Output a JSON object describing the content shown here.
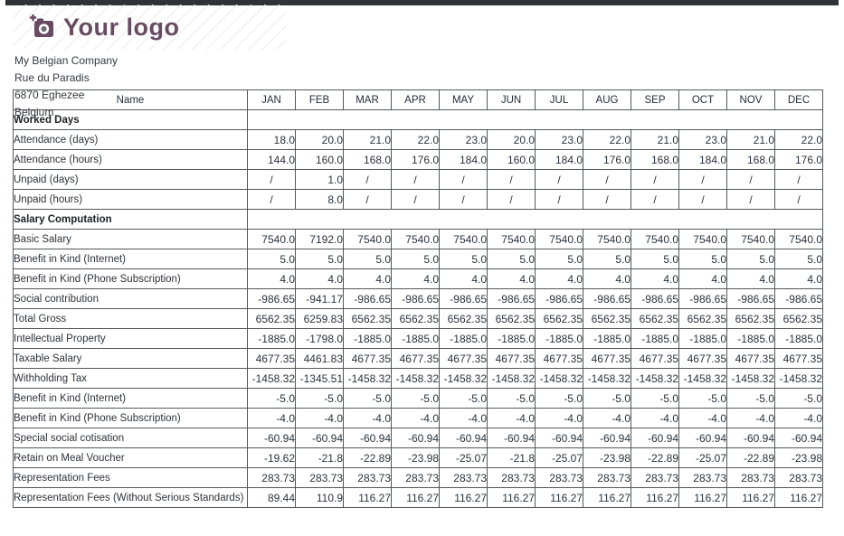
{
  "colors": {
    "brand_purple": "#684B63",
    "top_bar": "#2f3338",
    "table_border": "#53575c",
    "text": "#29323c"
  },
  "logo": {
    "text": "Your logo",
    "icon": "camera-plus-icon"
  },
  "company": {
    "name": "My Belgian Company",
    "street": "Rue du Paradis",
    "city": "6870 Eghezee",
    "country": "Belgium"
  },
  "table": {
    "name_header": "Name",
    "months": [
      "JAN",
      "FEB",
      "MAR",
      "APR",
      "MAY",
      "JUN",
      "JUL",
      "AUG",
      "SEP",
      "OCT",
      "NOV",
      "DEC"
    ],
    "sections": [
      {
        "title": "Worked Days",
        "rows": [
          {
            "label": "Attendance (days)",
            "values": [
              "18.0",
              "20.0",
              "21.0",
              "22.0",
              "23.0",
              "20.0",
              "23.0",
              "22.0",
              "21.0",
              "23.0",
              "21.0",
              "22.0"
            ]
          },
          {
            "label": "Attendance (hours)",
            "values": [
              "144.0",
              "160.0",
              "168.0",
              "176.0",
              "184.0",
              "160.0",
              "184.0",
              "176.0",
              "168.0",
              "184.0",
              "168.0",
              "176.0"
            ]
          },
          {
            "label": "Unpaid (days)",
            "values": [
              "/",
              "1.0",
              "/",
              "/",
              "/",
              "/",
              "/",
              "/",
              "/",
              "/",
              "/",
              "/"
            ]
          },
          {
            "label": "Unpaid (hours)",
            "values": [
              "/",
              "8.0",
              "/",
              "/",
              "/",
              "/",
              "/",
              "/",
              "/",
              "/",
              "/",
              "/"
            ]
          }
        ]
      },
      {
        "title": "Salary Computation",
        "rows": [
          {
            "label": "Basic Salary",
            "values": [
              "7540.0",
              "7192.0",
              "7540.0",
              "7540.0",
              "7540.0",
              "7540.0",
              "7540.0",
              "7540.0",
              "7540.0",
              "7540.0",
              "7540.0",
              "7540.0"
            ]
          },
          {
            "label": "Benefit in Kind (Internet)",
            "values": [
              "5.0",
              "5.0",
              "5.0",
              "5.0",
              "5.0",
              "5.0",
              "5.0",
              "5.0",
              "5.0",
              "5.0",
              "5.0",
              "5.0"
            ]
          },
          {
            "label": "Benefit in Kind (Phone Subscription)",
            "values": [
              "4.0",
              "4.0",
              "4.0",
              "4.0",
              "4.0",
              "4.0",
              "4.0",
              "4.0",
              "4.0",
              "4.0",
              "4.0",
              "4.0"
            ]
          },
          {
            "label": "Social contribution",
            "values": [
              "-986.65",
              "-941.17",
              "-986.65",
              "-986.65",
              "-986.65",
              "-986.65",
              "-986.65",
              "-986.65",
              "-986.65",
              "-986.65",
              "-986.65",
              "-986.65"
            ]
          },
          {
            "label": "Total Gross",
            "values": [
              "6562.35",
              "6259.83",
              "6562.35",
              "6562.35",
              "6562.35",
              "6562.35",
              "6562.35",
              "6562.35",
              "6562.35",
              "6562.35",
              "6562.35",
              "6562.35"
            ]
          },
          {
            "label": "Intellectual Property",
            "values": [
              "-1885.0",
              "-1798.0",
              "-1885.0",
              "-1885.0",
              "-1885.0",
              "-1885.0",
              "-1885.0",
              "-1885.0",
              "-1885.0",
              "-1885.0",
              "-1885.0",
              "-1885.0"
            ]
          },
          {
            "label": "Taxable Salary",
            "values": [
              "4677.35",
              "4461.83",
              "4677.35",
              "4677.35",
              "4677.35",
              "4677.35",
              "4677.35",
              "4677.35",
              "4677.35",
              "4677.35",
              "4677.35",
              "4677.35"
            ]
          },
          {
            "label": "Withholding Tax",
            "values": [
              "-1458.32",
              "-1345.51",
              "-1458.32",
              "-1458.32",
              "-1458.32",
              "-1458.32",
              "-1458.32",
              "-1458.32",
              "-1458.32",
              "-1458.32",
              "-1458.32",
              "-1458.32"
            ]
          },
          {
            "label": "Benefit in Kind (Internet)",
            "values": [
              "-5.0",
              "-5.0",
              "-5.0",
              "-5.0",
              "-5.0",
              "-5.0",
              "-5.0",
              "-5.0",
              "-5.0",
              "-5.0",
              "-5.0",
              "-5.0"
            ]
          },
          {
            "label": "Benefit in Kind (Phone Subscription)",
            "values": [
              "-4.0",
              "-4.0",
              "-4.0",
              "-4.0",
              "-4.0",
              "-4.0",
              "-4.0",
              "-4.0",
              "-4.0",
              "-4.0",
              "-4.0",
              "-4.0"
            ]
          },
          {
            "label": "Special social cotisation",
            "values": [
              "-60.94",
              "-60.94",
              "-60.94",
              "-60.94",
              "-60.94",
              "-60.94",
              "-60.94",
              "-60.94",
              "-60.94",
              "-60.94",
              "-60.94",
              "-60.94"
            ]
          },
          {
            "label": "Retain on Meal Voucher",
            "values": [
              "-19.62",
              "-21.8",
              "-22.89",
              "-23.98",
              "-25.07",
              "-21.8",
              "-25.07",
              "-23.98",
              "-22.89",
              "-25.07",
              "-22.89",
              "-23.98"
            ]
          },
          {
            "label": "Representation Fees",
            "values": [
              "283.73",
              "283.73",
              "283.73",
              "283.73",
              "283.73",
              "283.73",
              "283.73",
              "283.73",
              "283.73",
              "283.73",
              "283.73",
              "283.73"
            ]
          },
          {
            "label": "Representation Fees (Without Serious Standards)",
            "values": [
              "89.44",
              "110.9",
              "116.27",
              "116.27",
              "116.27",
              "116.27",
              "116.27",
              "116.27",
              "116.27",
              "116.27",
              "116.27",
              "116.27"
            ]
          }
        ]
      }
    ]
  }
}
